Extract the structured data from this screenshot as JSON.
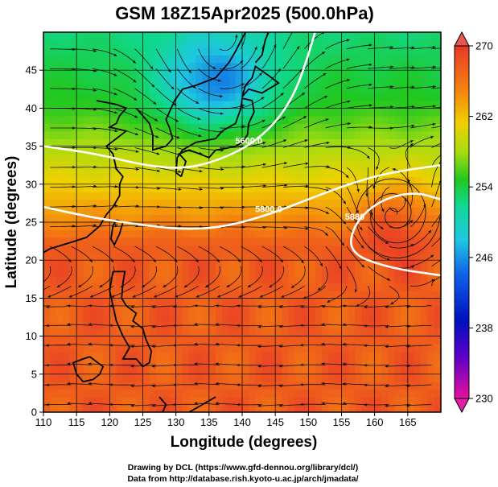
{
  "chart_data": {
    "type": "heatmap",
    "title": "GSM 18Z15Apr2025 (500.0hPa)",
    "xlabel": "Longitude (degrees)",
    "ylabel": "Latitude (degrees)",
    "xlim": [
      110,
      170
    ],
    "ylim": [
      0,
      50
    ],
    "x_ticks": [
      110,
      115,
      120,
      125,
      130,
      135,
      140,
      145,
      150,
      155,
      160,
      165
    ],
    "y_ticks": [
      0,
      5,
      10,
      15,
      20,
      25,
      30,
      35,
      40,
      45
    ],
    "x_tick_labels": [
      "110",
      "115",
      "120",
      "125",
      "130",
      "135",
      "140",
      "145",
      "150",
      "155",
      "160",
      "165"
    ],
    "y_tick_labels": [
      "0",
      "5",
      "10",
      "15",
      "20",
      "25",
      "30",
      "35",
      "40",
      "45"
    ],
    "grid": true,
    "field": "temperature (K) shaded, height contours (m), wind streamlines",
    "colorbar": {
      "range": [
        230,
        270
      ],
      "ticks": [
        230,
        238,
        246,
        254,
        262,
        270
      ],
      "tick_labels": [
        "230",
        "238",
        "246",
        "254",
        "262",
        "270"
      ],
      "placement": "right"
    },
    "contours": [
      {
        "label": "5800.0",
        "value": 5800,
        "lonlat": [
          [
            110,
            27
          ],
          [
            118,
            25.5
          ],
          [
            126,
            24.5
          ],
          [
            132,
            24
          ],
          [
            138,
            24.5
          ],
          [
            144,
            26
          ],
          [
            150,
            28
          ],
          [
            156,
            30
          ],
          [
            162,
            31.5
          ],
          [
            170,
            32.5
          ]
        ]
      },
      {
        "label": "5600.0",
        "value": 5600,
        "lonlat": [
          [
            110,
            35
          ],
          [
            118,
            34
          ],
          [
            125,
            32.5
          ],
          [
            131,
            32
          ],
          [
            136,
            33
          ],
          [
            141,
            35
          ],
          [
            145,
            38
          ],
          [
            148,
            42
          ],
          [
            150,
            47
          ],
          [
            151,
            50
          ]
        ]
      },
      {
        "label": "5880",
        "value": 5880,
        "lonlat": [
          [
            170,
            18
          ],
          [
            162,
            19
          ],
          [
            156,
            21
          ],
          [
            157,
            25
          ],
          [
            161,
            28
          ],
          [
            166,
            29
          ],
          [
            170,
            28
          ]
        ]
      }
    ],
    "cyclone_center": [
      163,
      26
    ],
    "credits": [
      "Drawing by DCL (https://www.gfd-dennou.org/library/dcl/)",
      "Data from http://database.rish.kyoto-u.ac.jp/arch/jmadata/"
    ]
  },
  "colors": {
    "background": "#ffffff",
    "frame": "#000000",
    "contour": "#ffffff",
    "streamline": "#111111"
  }
}
